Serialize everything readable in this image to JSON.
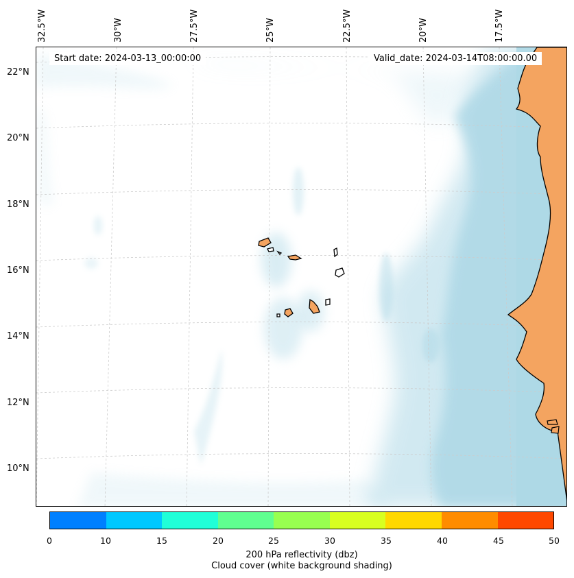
{
  "info": {
    "start_date": "Start date: 2024-03-13_00:00:00",
    "valid_date": "Valid_date: 2024-03-14T08:00:00.00"
  },
  "longitude_labels": [
    "32.5°W",
    "30°W",
    "27.5°W",
    "25°W",
    "22.5°W",
    "20°W",
    "17.5°W"
  ],
  "latitude_labels": [
    "22°N",
    "20°N",
    "18°N",
    "16°N",
    "14°N",
    "12°N",
    "10°N"
  ],
  "colorbar": {
    "ticks": [
      "0",
      "10",
      "15",
      "20",
      "25",
      "30",
      "35",
      "40",
      "45",
      "50"
    ],
    "colors": [
      "#0080ff",
      "#00c8ff",
      "#20ffd8",
      "#60ff90",
      "#98ff50",
      "#d8ff20",
      "#ffd800",
      "#ff8c00",
      "#ff4800"
    ],
    "label_line1": "200 hPa reflectivity (dbz)",
    "label_line2": "Cloud cover (white background shading)"
  },
  "colors": {
    "land": "#f4a460",
    "cloud": "#add8e6",
    "grid": "#cccccc"
  }
}
